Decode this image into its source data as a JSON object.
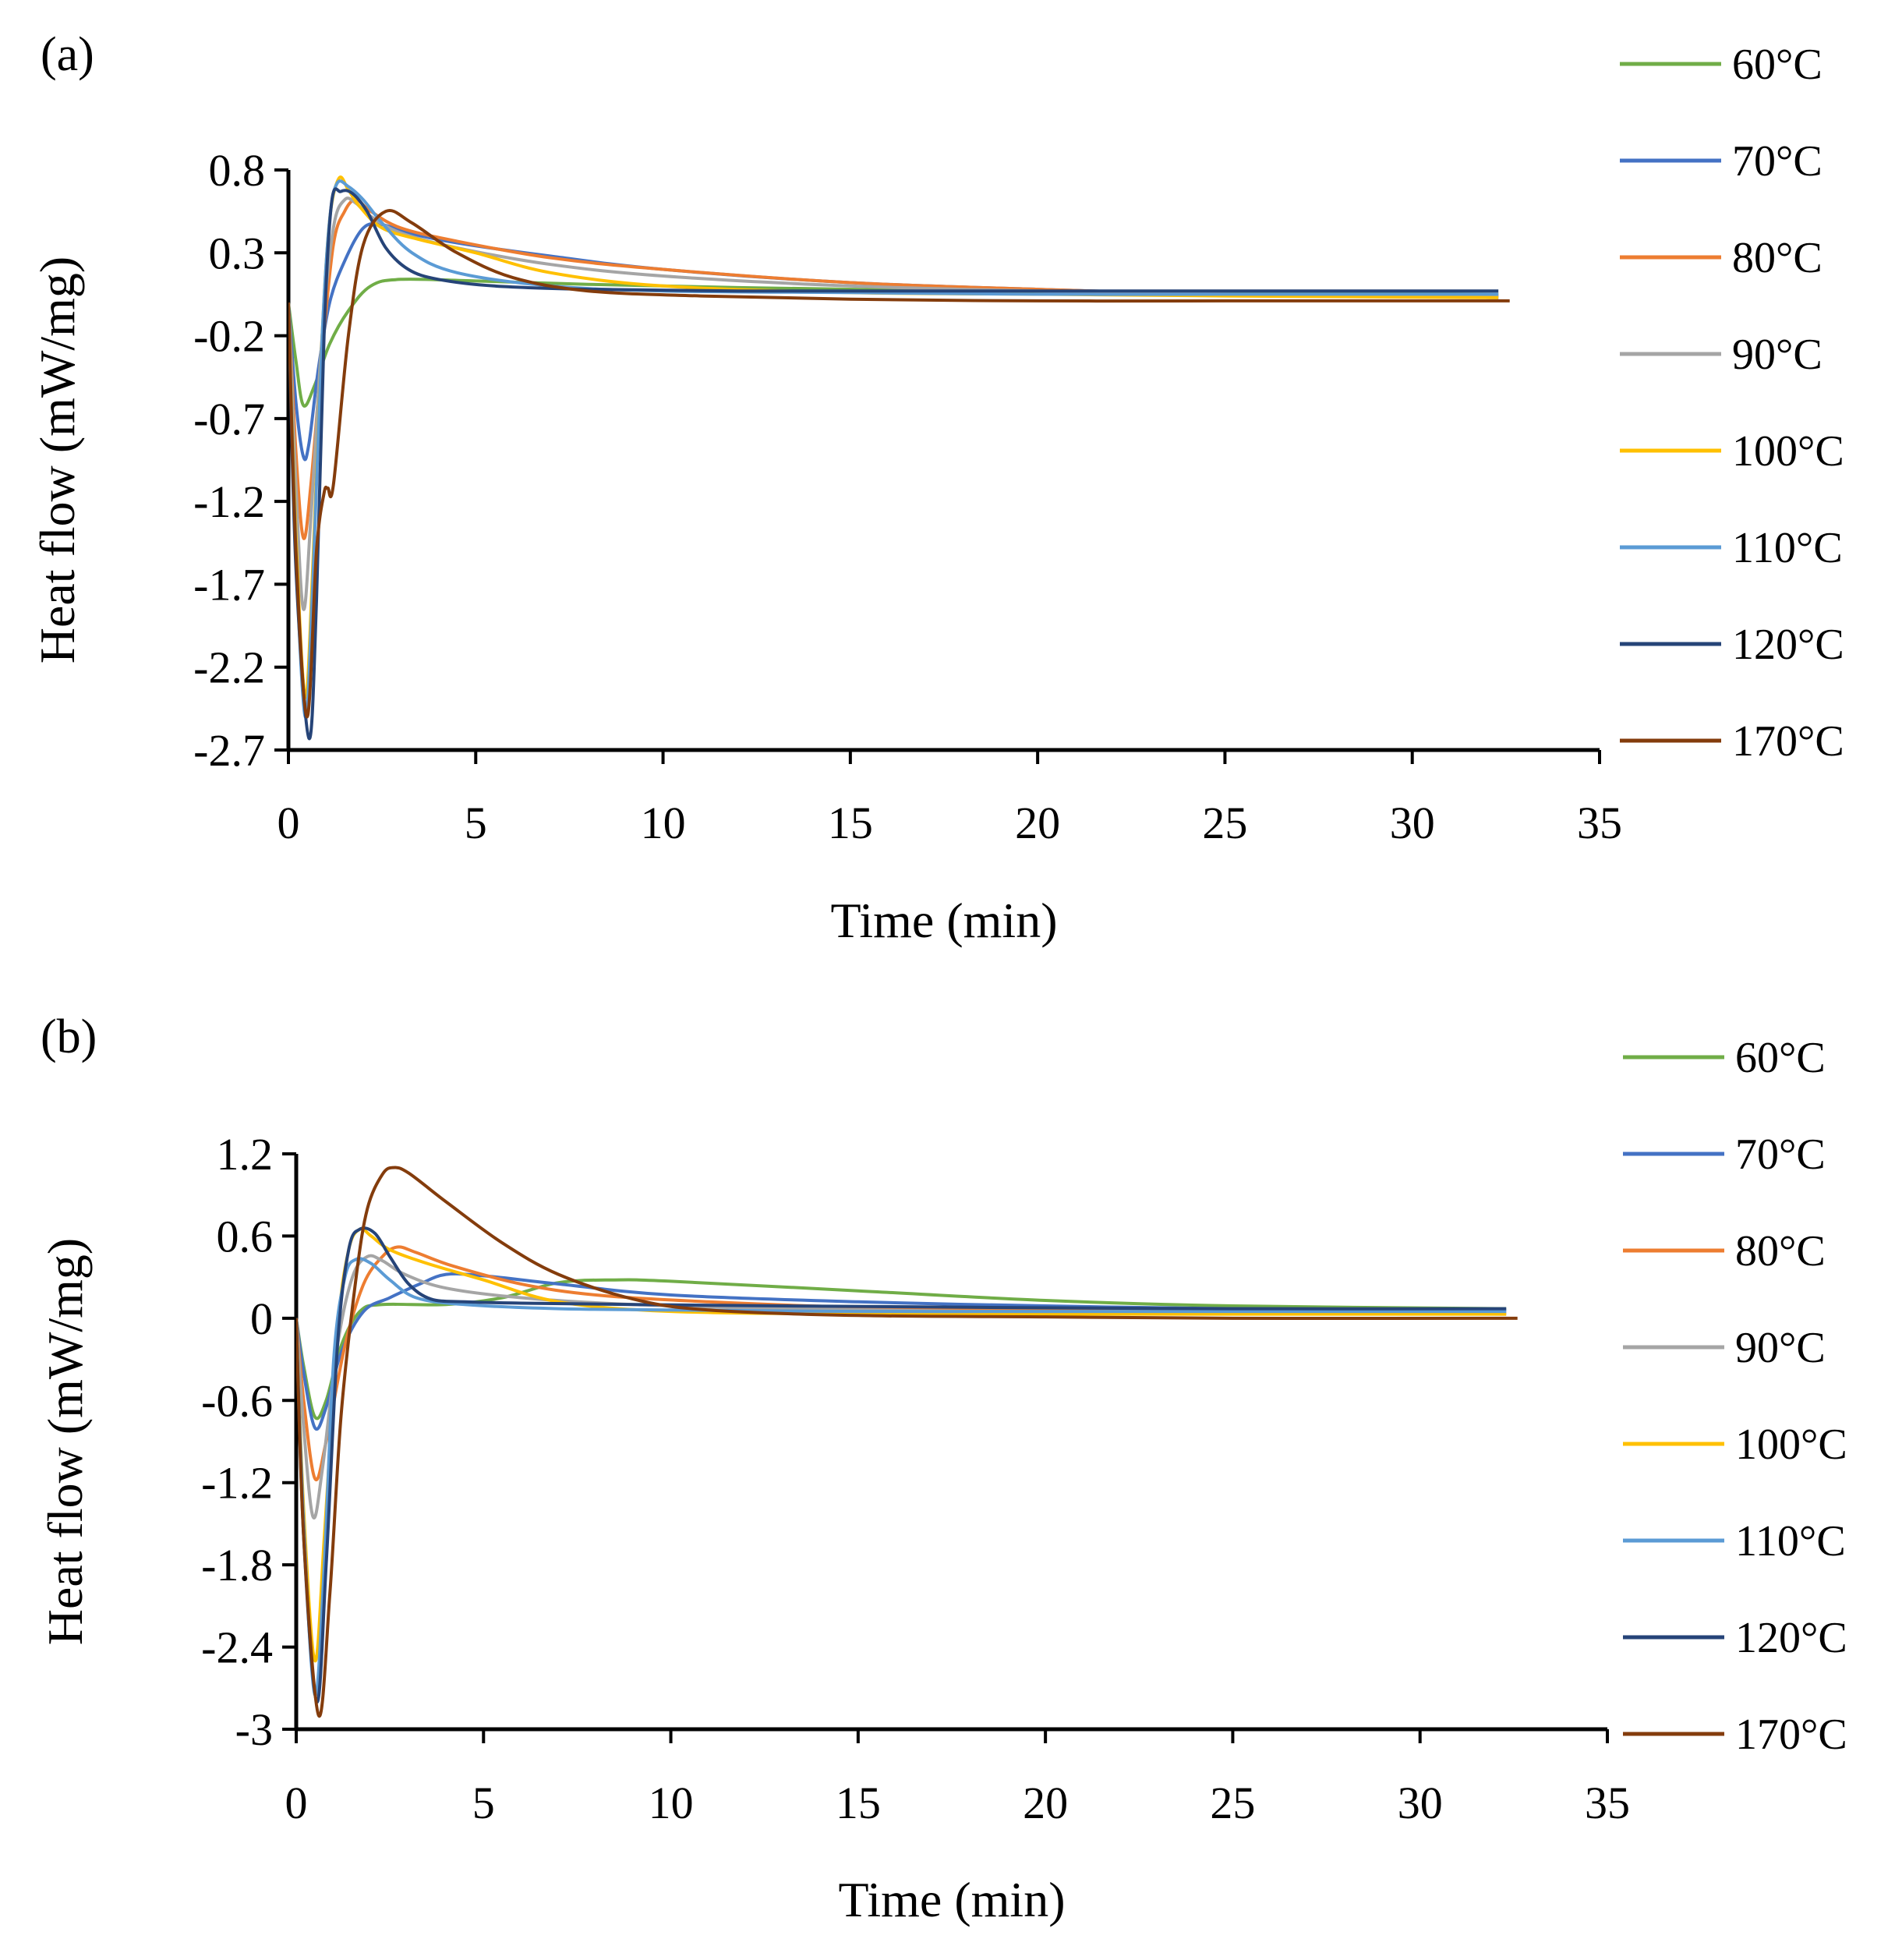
{
  "chart_data": [
    {
      "panel": "(a)",
      "type": "line",
      "xlabel": "Time (min)",
      "ylabel": "Heat flow (mW/mg)",
      "xlim": [
        0,
        35
      ],
      "ylim": [
        -2.7,
        0.8
      ],
      "xticks": [
        "0",
        "5",
        "10",
        "15",
        "20",
        "25",
        "30",
        "35"
      ],
      "yticks": [
        "0.8",
        "0.3",
        "-0.2",
        "-0.7",
        "-1.2",
        "-1.7",
        "-2.2",
        "-2.7"
      ],
      "grid": false,
      "legend_position": "right",
      "series": [
        {
          "name": "60°C",
          "color": "#70AD47",
          "x": [
            0,
            0.2,
            0.4,
            0.7,
            1.1,
            1.6,
            2.2,
            3.0,
            5,
            8,
            12,
            18,
            25,
            32.3
          ],
          "y": [
            0.0,
            -0.35,
            -0.62,
            -0.5,
            -0.25,
            -0.05,
            0.1,
            0.14,
            0.13,
            0.11,
            0.09,
            0.07,
            0.06,
            0.05
          ]
        },
        {
          "name": "70°C",
          "color": "#4472C4",
          "x": [
            0,
            0.2,
            0.4,
            0.55,
            0.8,
            1.1,
            1.5,
            2.0,
            2.5,
            3.2,
            4.5,
            7,
            10,
            15,
            20,
            25,
            32.3
          ],
          "y": [
            0.0,
            -0.6,
            -0.93,
            -0.85,
            -0.4,
            0.0,
            0.25,
            0.45,
            0.47,
            0.42,
            0.36,
            0.28,
            0.2,
            0.12,
            0.08,
            0.05,
            0.03
          ]
        },
        {
          "name": "80°C",
          "color": "#ED7D31",
          "x": [
            0,
            0.2,
            0.4,
            0.6,
            0.9,
            1.2,
            1.5,
            1.8,
            2.2,
            3.0,
            4.5,
            7,
            10,
            15,
            20,
            25,
            32.3
          ],
          "y": [
            0.0,
            -0.9,
            -1.42,
            -1.1,
            -0.3,
            0.35,
            0.55,
            0.62,
            0.55,
            0.45,
            0.37,
            0.27,
            0.2,
            0.12,
            0.08,
            0.05,
            0.04
          ]
        },
        {
          "name": "90°C",
          "color": "#A5A5A5",
          "x": [
            0,
            0.2,
            0.4,
            0.6,
            0.9,
            1.2,
            1.5,
            1.8,
            2.2,
            3.0,
            4.5,
            7,
            10,
            15,
            20,
            25,
            32.3
          ],
          "y": [
            0.0,
            -1.1,
            -1.85,
            -1.3,
            -0.2,
            0.45,
            0.62,
            0.6,
            0.52,
            0.42,
            0.33,
            0.23,
            0.16,
            0.1,
            0.07,
            0.05,
            0.04
          ]
        },
        {
          "name": "100°C",
          "color": "#FFC000",
          "x": [
            0,
            0.2,
            0.45,
            0.65,
            0.9,
            1.1,
            1.35,
            1.6,
            1.9,
            2.5,
            3.5,
            5,
            7,
            10,
            15,
            20,
            25,
            32.3
          ],
          "y": [
            0.0,
            -1.4,
            -2.38,
            -1.6,
            -0.2,
            0.5,
            0.75,
            0.68,
            0.58,
            0.45,
            0.38,
            0.3,
            0.18,
            0.1,
            0.06,
            0.05,
            0.04,
            0.03
          ]
        },
        {
          "name": "110°C",
          "color": "#5B9BD5",
          "x": [
            0,
            0.2,
            0.45,
            0.65,
            0.9,
            1.1,
            1.3,
            1.6,
            2.0,
            2.5,
            3.3,
            4.5,
            7,
            10,
            15,
            20,
            25,
            32.3
          ],
          "y": [
            0.0,
            -1.5,
            -2.5,
            -1.7,
            -0.2,
            0.5,
            0.72,
            0.7,
            0.62,
            0.48,
            0.3,
            0.18,
            0.1,
            0.07,
            0.06,
            0.05,
            0.05,
            0.05
          ]
        },
        {
          "name": "120°C",
          "color": "#264478",
          "x": [
            0,
            0.2,
            0.55,
            0.75,
            0.95,
            1.15,
            1.4,
            1.7,
            2.1,
            2.6,
            3.2,
            4.0,
            5.5,
            8,
            12,
            18,
            25,
            32.3
          ],
          "y": [
            0.0,
            -1.6,
            -2.63,
            -1.8,
            -0.2,
            0.6,
            0.67,
            0.66,
            0.55,
            0.33,
            0.2,
            0.14,
            0.1,
            0.08,
            0.07,
            0.07,
            0.07,
            0.07
          ]
        },
        {
          "name": "170°C",
          "color": "#843C0C",
          "x": [
            0,
            0.2,
            0.5,
            0.75,
            0.95,
            1.05,
            1.2,
            1.6,
            2.0,
            2.6,
            3.3,
            4.5,
            6,
            8,
            11,
            15,
            20,
            25,
            32.6
          ],
          "y": [
            0.0,
            -1.5,
            -2.5,
            -1.5,
            -1.15,
            -1.12,
            -1.1,
            -0.2,
            0.35,
            0.55,
            0.48,
            0.3,
            0.15,
            0.07,
            0.04,
            0.02,
            0.01,
            0.01,
            0.01
          ]
        }
      ]
    },
    {
      "panel": "(b)",
      "type": "line",
      "xlabel": "Time (min)",
      "ylabel": "Heat flow (mW/mg)",
      "xlim": [
        0,
        35
      ],
      "ylim": [
        -3,
        1.2
      ],
      "xticks": [
        "0",
        "5",
        "10",
        "15",
        "20",
        "25",
        "30",
        "35"
      ],
      "yticks": [
        "1.2",
        "0.6",
        "0",
        "-0.6",
        "-1.2",
        "-1.8",
        "-2.4",
        "-3"
      ],
      "grid": false,
      "legend_position": "right",
      "series": [
        {
          "name": "60°C",
          "color": "#70AD47",
          "x": [
            0,
            0.2,
            0.5,
            0.8,
            1.2,
            1.7,
            2.3,
            4,
            5.5,
            7,
            8.5,
            10,
            15,
            20,
            25,
            32.3
          ],
          "y": [
            0.0,
            -0.35,
            -0.72,
            -0.6,
            -0.2,
            0.05,
            0.1,
            0.1,
            0.15,
            0.26,
            0.28,
            0.27,
            0.2,
            0.13,
            0.09,
            0.07
          ]
        },
        {
          "name": "70°C",
          "color": "#4472C4",
          "x": [
            0,
            0.2,
            0.5,
            0.8,
            1.2,
            1.8,
            2.5,
            3.3,
            4.0,
            5.0,
            7,
            10,
            15,
            20,
            25,
            32.3
          ],
          "y": [
            0.0,
            -0.4,
            -0.8,
            -0.65,
            -0.25,
            0.05,
            0.15,
            0.25,
            0.32,
            0.31,
            0.25,
            0.17,
            0.12,
            0.09,
            0.07,
            0.06
          ]
        },
        {
          "name": "80°C",
          "color": "#ED7D31",
          "x": [
            0,
            0.2,
            0.5,
            0.8,
            1.3,
            1.8,
            2.3,
            2.7,
            3.2,
            4.2,
            6,
            8,
            11,
            15,
            20,
            25,
            32.3
          ],
          "y": [
            0.0,
            -0.6,
            -1.17,
            -0.9,
            -0.2,
            0.25,
            0.45,
            0.52,
            0.48,
            0.38,
            0.25,
            0.17,
            0.12,
            0.08,
            0.06,
            0.05,
            0.04
          ]
        },
        {
          "name": "90°C",
          "color": "#A5A5A5",
          "x": [
            0,
            0.2,
            0.45,
            0.7,
            1.1,
            1.5,
            1.9,
            2.3,
            2.9,
            4.0,
            6,
            9,
            13,
            18,
            25,
            32.3
          ],
          "y": [
            0.0,
            -0.8,
            -1.45,
            -1.1,
            -0.2,
            0.3,
            0.45,
            0.42,
            0.32,
            0.22,
            0.15,
            0.1,
            0.07,
            0.05,
            0.04,
            0.03
          ]
        },
        {
          "name": "100°C",
          "color": "#FFC000",
          "x": [
            0,
            0.2,
            0.5,
            0.75,
            1.1,
            1.4,
            1.7,
            2.0,
            2.5,
            3.5,
            5,
            7,
            10,
            15,
            20,
            25,
            32.3
          ],
          "y": [
            0.0,
            -1.4,
            -2.5,
            -1.6,
            -0.1,
            0.5,
            0.65,
            0.6,
            0.5,
            0.4,
            0.28,
            0.12,
            0.05,
            0.03,
            0.03,
            0.03,
            0.03
          ]
        },
        {
          "name": "110°C",
          "color": "#5B9BD5",
          "x": [
            0,
            0.2,
            0.5,
            0.75,
            1.0,
            1.3,
            1.6,
            2.0,
            2.5,
            3.2,
            4.5,
            7,
            10,
            15,
            20,
            25,
            32.3
          ],
          "y": [
            0.0,
            -1.5,
            -2.75,
            -1.8,
            -0.3,
            0.3,
            0.43,
            0.4,
            0.28,
            0.15,
            0.1,
            0.07,
            0.06,
            0.05,
            0.05,
            0.05,
            0.05
          ]
        },
        {
          "name": "120°C",
          "color": "#264478",
          "x": [
            0,
            0.2,
            0.55,
            0.8,
            1.1,
            1.4,
            1.7,
            2.1,
            2.5,
            3.0,
            3.6,
            4.5,
            6,
            9,
            13,
            18,
            25,
            32.3
          ],
          "y": [
            0.0,
            -1.6,
            -2.8,
            -1.8,
            -0.2,
            0.5,
            0.65,
            0.62,
            0.45,
            0.25,
            0.14,
            0.12,
            0.11,
            0.1,
            0.09,
            0.08,
            0.07,
            0.07
          ]
        },
        {
          "name": "170°C",
          "color": "#843C0C",
          "x": [
            0,
            0.2,
            0.6,
            0.9,
            1.2,
            1.6,
            1.9,
            2.3,
            2.6,
            3.0,
            4,
            5.5,
            7,
            9,
            11,
            15,
            20,
            25,
            32.6
          ],
          "y": [
            0.0,
            -1.6,
            -2.9,
            -2.0,
            -0.7,
            0.3,
            0.8,
            1.05,
            1.1,
            1.06,
            0.85,
            0.55,
            0.32,
            0.14,
            0.06,
            0.02,
            0.01,
            0.0,
            0.0
          ]
        }
      ]
    }
  ]
}
